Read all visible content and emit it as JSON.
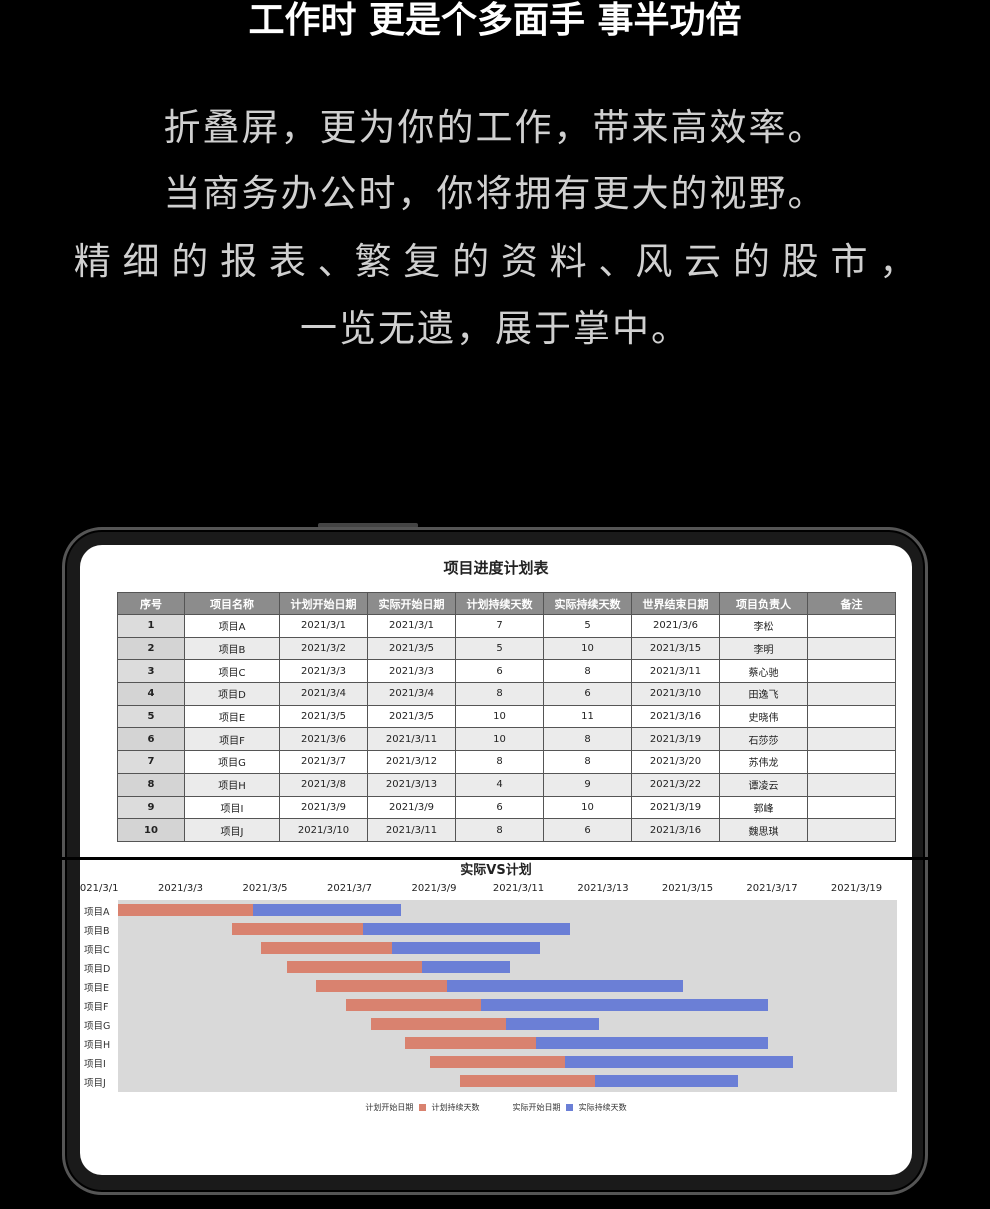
{
  "headline": "工作时 更是个多面手 事半功倍",
  "paragraph": [
    "折叠屏，更为你的工作，带来高效率。",
    "当商务办公时，你将拥有更大的视野。",
    "精 细 的 报 表 、繁 复 的 资 料 、风 云 的 股 市 ，",
    "一览无遗，展于掌中。"
  ],
  "sheet": {
    "title": "项目进度计划表",
    "columns": [
      "序号",
      "项目名称",
      "计划开始日期",
      "实际开始日期",
      "计划持续天数",
      "实际持续天数",
      "世界结束日期",
      "项目负责人",
      "备注"
    ],
    "rows": [
      [
        "1",
        "项目A",
        "2021/3/1",
        "2021/3/1",
        "7",
        "5",
        "2021/3/6",
        "李松",
        ""
      ],
      [
        "2",
        "项目B",
        "2021/3/2",
        "2021/3/5",
        "5",
        "10",
        "2021/3/15",
        "李明",
        ""
      ],
      [
        "3",
        "项目C",
        "2021/3/3",
        "2021/3/3",
        "6",
        "8",
        "2021/3/11",
        "蔡心驰",
        ""
      ],
      [
        "4",
        "项目D",
        "2021/3/4",
        "2021/3/4",
        "8",
        "6",
        "2021/3/10",
        "田逸飞",
        ""
      ],
      [
        "5",
        "项目E",
        "2021/3/5",
        "2021/3/5",
        "10",
        "11",
        "2021/3/16",
        "史晓伟",
        ""
      ],
      [
        "6",
        "项目F",
        "2021/3/6",
        "2021/3/11",
        "10",
        "8",
        "2021/3/19",
        "石莎莎",
        ""
      ],
      [
        "7",
        "项目G",
        "2021/3/7",
        "2021/3/12",
        "8",
        "8",
        "2021/3/20",
        "苏伟龙",
        ""
      ],
      [
        "8",
        "项目H",
        "2021/3/8",
        "2021/3/13",
        "4",
        "9",
        "2021/3/22",
        "谭凌云",
        ""
      ],
      [
        "9",
        "项目I",
        "2021/3/9",
        "2021/3/9",
        "6",
        "10",
        "2021/3/19",
        "郭峰",
        ""
      ],
      [
        "10",
        "项目J",
        "2021/3/10",
        "2021/3/11",
        "8",
        "6",
        "2021/3/16",
        "魏思琪",
        ""
      ]
    ]
  },
  "chart_data": {
    "type": "bar",
    "orientation": "horizontal-stacked",
    "title": "实际VS计划",
    "x_ticks": [
      "2021/3/1",
      "2021/3/3",
      "2021/3/5",
      "2021/3/7",
      "2021/3/9",
      "2021/3/11",
      "2021/3/13",
      "2021/3/15",
      "2021/3/17",
      "2021/3/19"
    ],
    "x_unit": "day of March 2021",
    "xlim": [
      1,
      19
    ],
    "categories": [
      "项目A",
      "项目B",
      "项目C",
      "项目D",
      "项目E",
      "项目F",
      "项目G",
      "项目H",
      "项目I",
      "项目J"
    ],
    "segments": {
      "plan": [
        [
          1,
          4.2
        ],
        [
          3.7,
          6.8
        ],
        [
          4.4,
          7.5
        ],
        [
          5,
          8.2
        ],
        [
          5.7,
          8.8
        ],
        [
          6.4,
          9.6
        ],
        [
          7,
          10.2
        ],
        [
          7.8,
          10.9
        ],
        [
          8.4,
          11.6
        ],
        [
          9.1,
          12.3
        ]
      ],
      "actual": [
        [
          4.2,
          7.7
        ],
        [
          6.8,
          11.7
        ],
        [
          7.5,
          11
        ],
        [
          8.2,
          10.3
        ],
        [
          8.8,
          14.4
        ],
        [
          9.6,
          16.4
        ],
        [
          10.2,
          12.4
        ],
        [
          10.9,
          16.4
        ],
        [
          11.6,
          17
        ],
        [
          12.3,
          15.7
        ]
      ]
    },
    "legend": [
      "计划开始日期",
      "计划持续天数",
      "实际开始日期",
      "实际持续天数"
    ],
    "colors": {
      "plan": "#d9826f",
      "actual": "#6b7fd6",
      "plot_bg": "#d9d9d9"
    },
    "grid": false,
    "legend_position": "bottom"
  }
}
